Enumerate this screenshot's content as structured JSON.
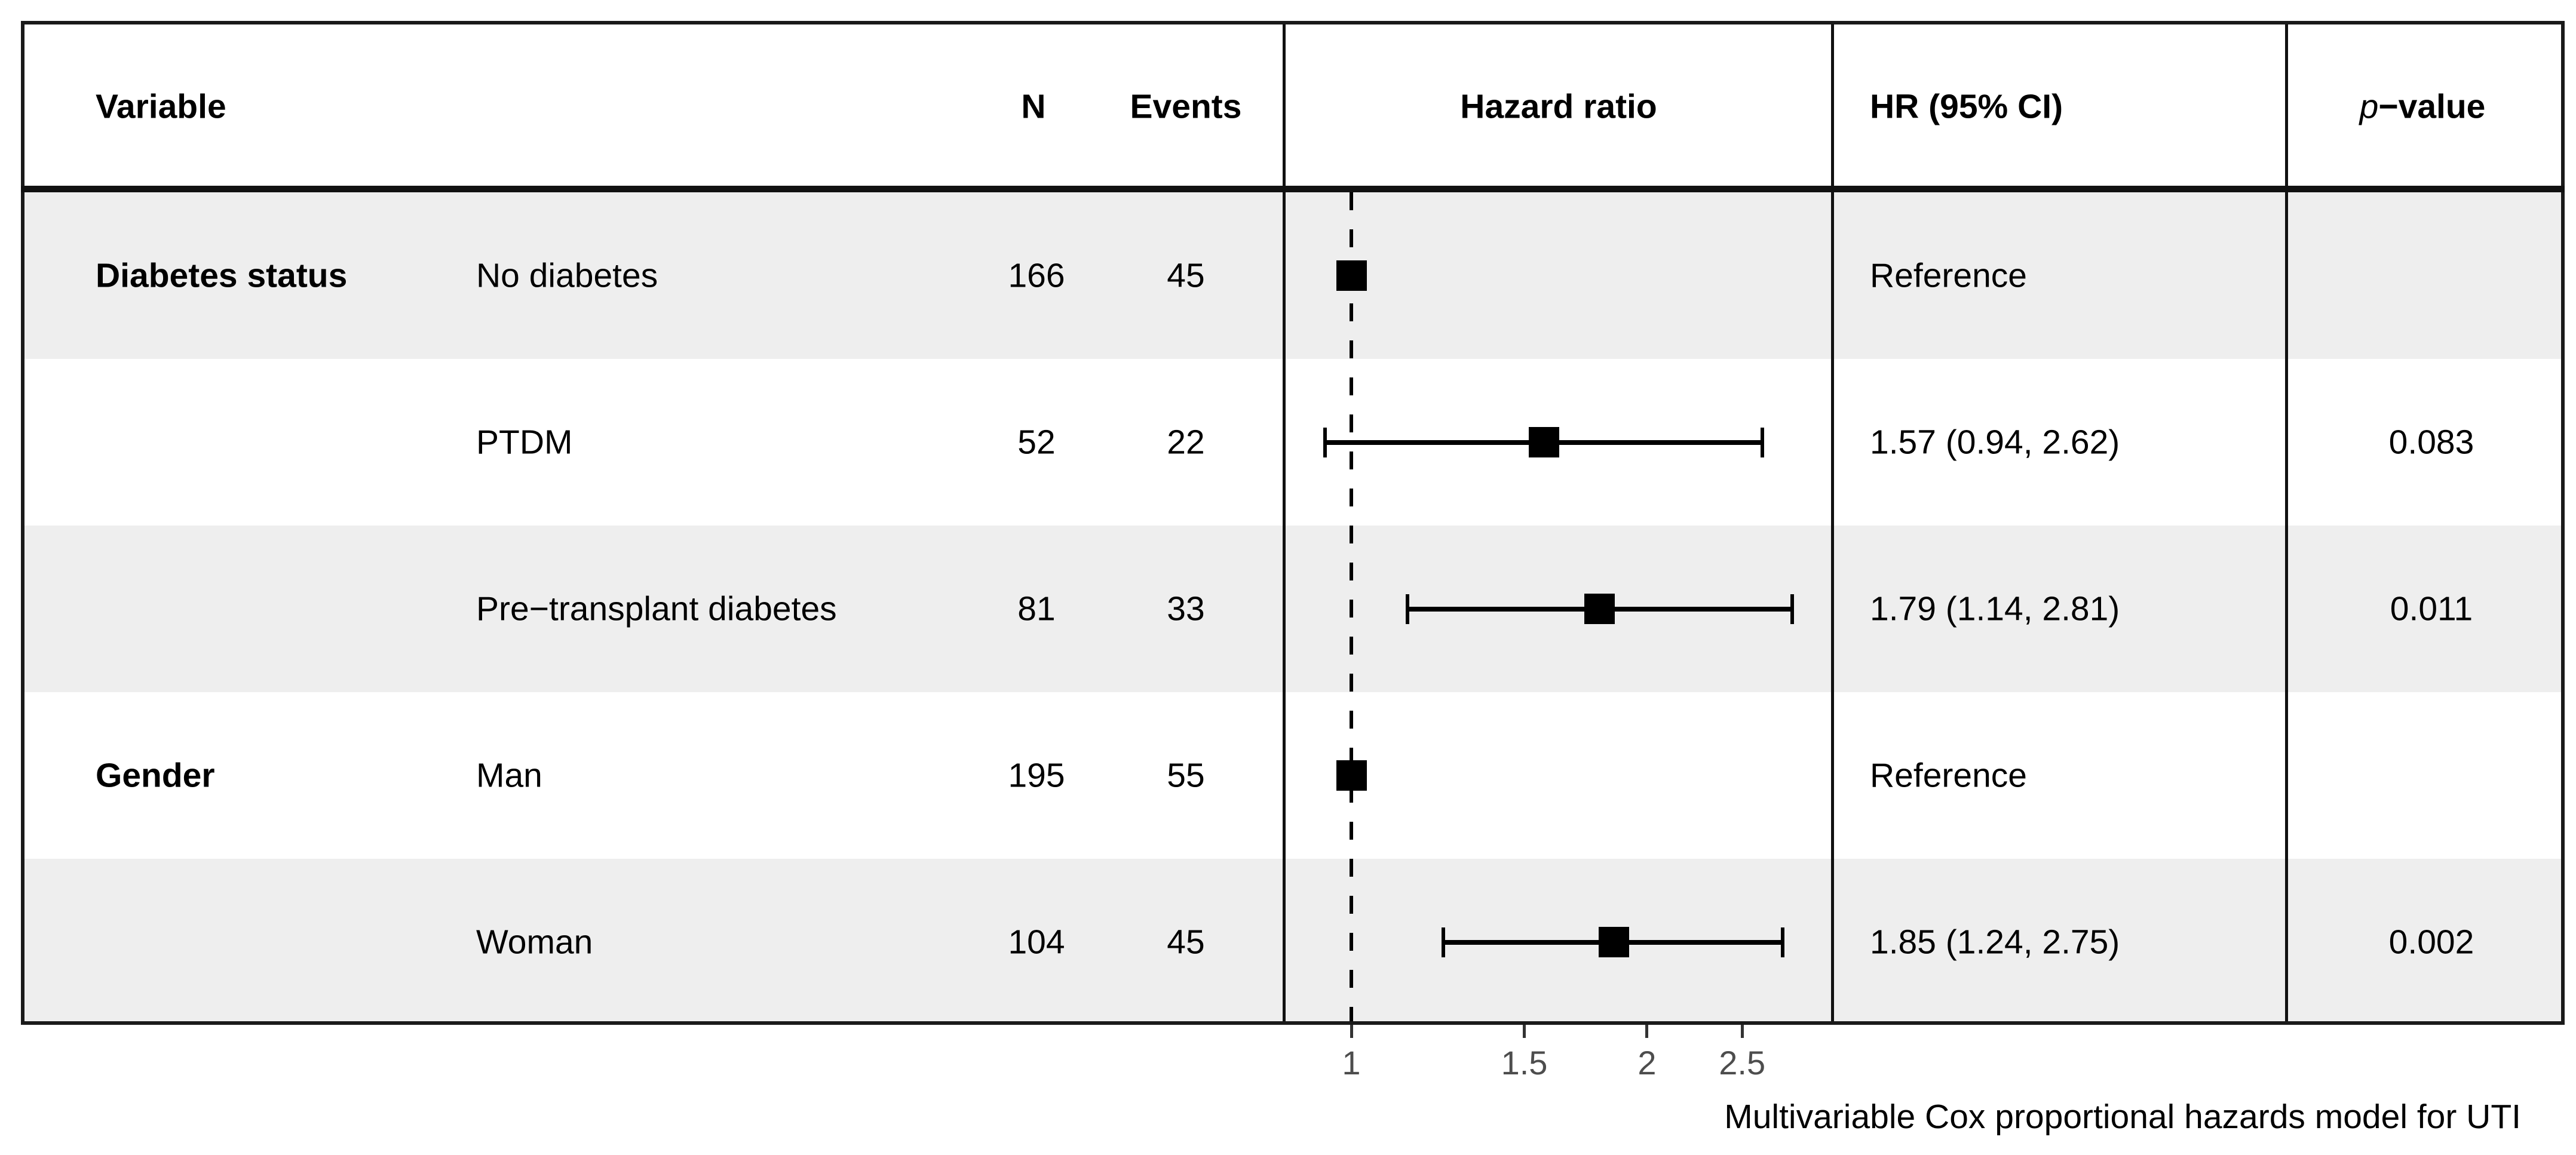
{
  "colors": {
    "background": "#ffffff",
    "stripe": "#eeeeee",
    "border": "#1a1a1a",
    "marker": "#000000",
    "tick_label": "#4d4d4d"
  },
  "table": {
    "headers": {
      "variable": "Variable",
      "n": "N",
      "events": "Events",
      "hazard_ratio": "Hazard ratio",
      "hr_ci": "HR (95% CI)",
      "p_italic": "p",
      "p_rest": "−value"
    }
  },
  "axis": {
    "tick_labels": [
      "1",
      "1.5",
      "2",
      "2.5"
    ]
  },
  "footer": {
    "caption": "Multivariable Cox proportional hazards model for UTI"
  },
  "chart_data": {
    "type": "scatter",
    "subtype": "forest-plot",
    "title": "Multivariable Cox proportional hazards model for UTI",
    "x_scale": "log",
    "xlabel": "Hazard ratio",
    "x_ticks": [
      1,
      1.5,
      2,
      2.5
    ],
    "x_range": [
      0.82,
      3.2
    ],
    "reference_line_x": 1,
    "grid": false,
    "legend": "none",
    "rows": [
      {
        "variable": "Diabetes status",
        "level": "No diabetes",
        "n": "166",
        "events": "45",
        "hr": 1.0,
        "ci_low": null,
        "ci_high": null,
        "hr_ci_label": "Reference",
        "p_value": ""
      },
      {
        "variable": "",
        "level": "PTDM",
        "n": "52",
        "events": "22",
        "hr": 1.57,
        "ci_low": 0.94,
        "ci_high": 2.62,
        "hr_ci_label": "1.57 (0.94, 2.62)",
        "p_value": "0.083"
      },
      {
        "variable": "",
        "level": "Pre−transplant diabetes",
        "n": "81",
        "events": "33",
        "hr": 1.79,
        "ci_low": 1.14,
        "ci_high": 2.81,
        "hr_ci_label": "1.79 (1.14, 2.81)",
        "p_value": "0.011"
      },
      {
        "variable": "Gender",
        "level": "Man",
        "n": "195",
        "events": "55",
        "hr": 1.0,
        "ci_low": null,
        "ci_high": null,
        "hr_ci_label": "Reference",
        "p_value": ""
      },
      {
        "variable": "",
        "level": "Woman",
        "n": "104",
        "events": "45",
        "hr": 1.85,
        "ci_low": 1.24,
        "ci_high": 2.75,
        "hr_ci_label": "1.85 (1.24, 2.75)",
        "p_value": "0.002"
      }
    ],
    "caption": "Multivariable Cox proportional hazards model for UTI"
  }
}
